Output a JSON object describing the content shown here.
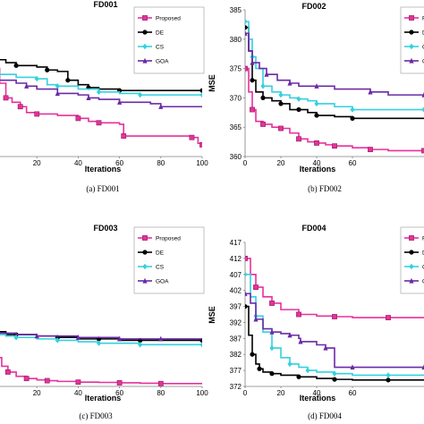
{
  "chart_data": [
    {
      "id": "fd001",
      "type": "line",
      "title": "FD001",
      "caption": "(a)  FD001",
      "xlabel": "Iterations",
      "ylabel": "",
      "xlim": [
        0,
        100
      ],
      "ylim": [
        0,
        10
      ],
      "xticks": [
        "20",
        "40",
        "60",
        "80",
        "100"
      ],
      "yticks": [],
      "legend": "top-right",
      "series": [
        {
          "name": "Proposed",
          "color": "#e8309e",
          "marker": "square",
          "x": [
            0,
            2,
            5,
            8,
            12,
            15,
            20,
            30,
            40,
            45,
            50,
            60,
            62,
            80,
            95,
            98,
            100
          ],
          "y": [
            6.0,
            5.0,
            4.0,
            3.7,
            3.4,
            3.0,
            2.9,
            2.8,
            2.6,
            2.4,
            2.3,
            2.2,
            1.4,
            1.4,
            1.3,
            0.9,
            0.8
          ]
        },
        {
          "name": "DE",
          "color": "#000000",
          "marker": "circle",
          "x": [
            0,
            5,
            10,
            20,
            25,
            30,
            35,
            40,
            45,
            50,
            60,
            80,
            100
          ],
          "y": [
            6.6,
            6.4,
            6.2,
            6.1,
            5.9,
            5.8,
            5.2,
            4.9,
            4.7,
            4.6,
            4.5,
            4.5,
            4.5
          ]
        },
        {
          "name": "CS",
          "color": "#33d1df",
          "marker": "diamond",
          "x": [
            0,
            10,
            20,
            25,
            30,
            40,
            50,
            60,
            70,
            80,
            100
          ],
          "y": [
            5.6,
            5.4,
            5.3,
            4.9,
            4.8,
            4.6,
            4.4,
            4.3,
            4.2,
            4.2,
            4.2
          ]
        },
        {
          "name": "GOA",
          "color": "#6a2aa6",
          "marker": "triangle",
          "x": [
            0,
            10,
            15,
            20,
            30,
            40,
            45,
            50,
            60,
            75,
            80,
            100
          ],
          "y": [
            5.2,
            5.0,
            4.8,
            4.6,
            4.3,
            4.2,
            4.0,
            3.9,
            3.7,
            3.6,
            3.4,
            3.4
          ]
        }
      ]
    },
    {
      "id": "fd002",
      "type": "line",
      "title": "FD002",
      "caption": "(b)  FD002",
      "xlabel": "Iterations",
      "ylabel": "MSE",
      "xlim": [
        0,
        100
      ],
      "ylim": [
        360,
        385
      ],
      "xticks": [
        "0",
        "20",
        "40",
        "60"
      ],
      "yticks": [
        "360",
        "365",
        "370",
        "375",
        "380",
        "385"
      ],
      "legend": "top-right",
      "series": [
        {
          "name": "Proposed",
          "color": "#e8309e",
          "marker": "square",
          "x": [
            0,
            2,
            4,
            6,
            10,
            15,
            20,
            25,
            30,
            35,
            40,
            45,
            50,
            60,
            70,
            80,
            100
          ],
          "y": [
            375,
            371,
            368,
            366,
            365.5,
            365,
            364.8,
            364,
            363,
            362.5,
            362.3,
            362,
            361.8,
            361.5,
            361.2,
            361,
            361
          ]
        },
        {
          "name": "DE",
          "color": "#000000",
          "marker": "circle",
          "x": [
            0,
            2,
            4,
            6,
            10,
            15,
            20,
            25,
            30,
            35,
            40,
            50,
            60,
            100
          ],
          "y": [
            382,
            378,
            373,
            371,
            370,
            369.5,
            369,
            368,
            368,
            367.5,
            367,
            366.8,
            366.5,
            366.5
          ]
        },
        {
          "name": "CS",
          "color": "#33d1df",
          "marker": "diamond",
          "x": [
            0,
            2,
            4,
            6,
            10,
            15,
            20,
            25,
            30,
            35,
            40,
            50,
            60,
            80,
            100
          ],
          "y": [
            383,
            380,
            377,
            375,
            372,
            371,
            370.5,
            370,
            369.8,
            369.5,
            369,
            368.5,
            368,
            368,
            368
          ]
        },
        {
          "name": "GOA",
          "color": "#6a2aa6",
          "marker": "triangle",
          "x": [
            0,
            2,
            4,
            8,
            12,
            18,
            25,
            30,
            40,
            50,
            70,
            80,
            100
          ],
          "y": [
            381,
            378,
            376,
            375,
            374,
            373,
            372.5,
            372,
            372,
            371.5,
            371,
            370.5,
            370.5
          ]
        }
      ]
    },
    {
      "id": "fd003",
      "type": "line",
      "title": "FD003",
      "caption": "(c)  FD003",
      "xlabel": "Iterations",
      "ylabel": "",
      "xlim": [
        0,
        100
      ],
      "ylim": [
        0,
        10
      ],
      "xticks": [
        "20",
        "40",
        "60",
        "80",
        "100"
      ],
      "yticks": [],
      "legend": "top-right",
      "series": [
        {
          "name": "Proposed",
          "color": "#e8309e",
          "marker": "square",
          "x": [
            0,
            3,
            6,
            10,
            15,
            20,
            25,
            30,
            40,
            50,
            60,
            70,
            80,
            100
          ],
          "y": [
            2.0,
            1.4,
            1.0,
            0.7,
            0.55,
            0.45,
            0.4,
            0.35,
            0.3,
            0.28,
            0.25,
            0.22,
            0.2,
            0.2
          ]
        },
        {
          "name": "DE",
          "color": "#000000",
          "marker": "circle",
          "x": [
            0,
            5,
            10,
            20,
            30,
            40,
            50,
            60,
            70,
            80,
            100
          ],
          "y": [
            3.8,
            3.6,
            3.6,
            3.5,
            3.4,
            3.3,
            3.3,
            3.2,
            3.2,
            3.2,
            3.2
          ]
        },
        {
          "name": "CS",
          "color": "#33d1df",
          "marker": "diamond",
          "x": [
            0,
            5,
            10,
            20,
            30,
            40,
            50,
            60,
            70,
            80,
            100
          ],
          "y": [
            3.6,
            3.5,
            3.4,
            3.3,
            3.2,
            3.1,
            3.0,
            3.0,
            2.9,
            2.9,
            2.9
          ]
        },
        {
          "name": "GOA",
          "color": "#6a2aa6",
          "marker": "triangle",
          "x": [
            0,
            10,
            20,
            30,
            40,
            50,
            60,
            70,
            80,
            100
          ],
          "y": [
            3.7,
            3.6,
            3.5,
            3.5,
            3.4,
            3.4,
            3.3,
            3.3,
            3.3,
            3.3
          ]
        }
      ]
    },
    {
      "id": "fd004",
      "type": "line",
      "title": "FD004",
      "caption": "(d)  FD004",
      "xlabel": "Iterations",
      "ylabel": "MSE",
      "xlim": [
        0,
        100
      ],
      "ylim": [
        372,
        417
      ],
      "xticks": [
        "0",
        "20",
        "40",
        "60"
      ],
      "yticks": [
        "372",
        "377",
        "382",
        "387",
        "392",
        "397",
        "402",
        "407",
        "412",
        "417"
      ],
      "legend": "top-right",
      "series": [
        {
          "name": "Proposed",
          "color": "#e8309e",
          "marker": "square",
          "x": [
            0,
            3,
            6,
            10,
            15,
            20,
            30,
            40,
            50,
            60,
            80,
            100
          ],
          "y": [
            412,
            407,
            403,
            400,
            398,
            396,
            394.5,
            394,
            393.8,
            393.5,
            393.5,
            393.5
          ]
        },
        {
          "name": "DE",
          "color": "#000000",
          "marker": "circle",
          "x": [
            0,
            2,
            4,
            6,
            8,
            10,
            15,
            20,
            30,
            40,
            50,
            60,
            80,
            100
          ],
          "y": [
            397,
            388,
            382,
            379,
            377.5,
            376.5,
            376,
            375.5,
            375,
            374.5,
            374.2,
            374,
            374,
            374
          ]
        },
        {
          "name": "CS",
          "color": "#33d1df",
          "marker": "diamond",
          "x": [
            0,
            3,
            6,
            10,
            15,
            20,
            25,
            30,
            35,
            40,
            50,
            60,
            80,
            100
          ],
          "y": [
            407,
            400,
            394,
            389,
            384,
            381,
            379,
            378,
            377,
            376.5,
            376,
            375.5,
            375.5,
            375.5
          ]
        },
        {
          "name": "GOA",
          "color": "#6a2aa6",
          "marker": "triangle",
          "x": [
            0,
            3,
            6,
            10,
            15,
            20,
            25,
            30,
            31,
            40,
            45,
            50,
            60,
            80,
            100
          ],
          "y": [
            401,
            398,
            393,
            390,
            389,
            388.5,
            388,
            387,
            386,
            385,
            384,
            378,
            378,
            378,
            378
          ]
        }
      ]
    }
  ]
}
